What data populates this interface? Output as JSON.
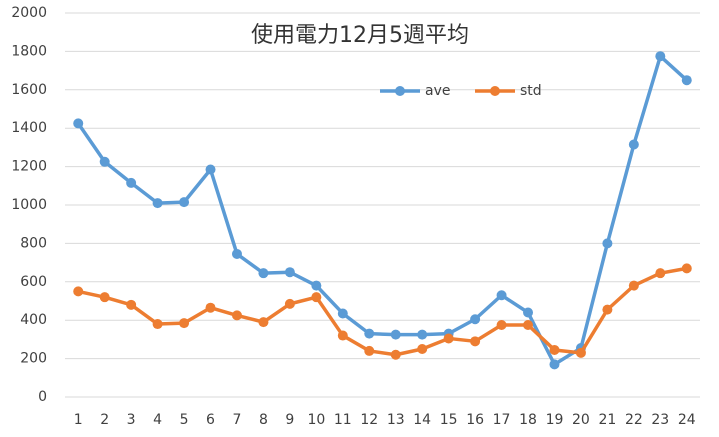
{
  "chart_data": {
    "type": "line",
    "title": "使用電力12月5週平均",
    "categories": [
      "1",
      "2",
      "3",
      "4",
      "5",
      "6",
      "7",
      "8",
      "9",
      "10",
      "11",
      "12",
      "13",
      "14",
      "15",
      "16",
      "17",
      "18",
      "19",
      "20",
      "21",
      "22",
      "23",
      "24"
    ],
    "series": [
      {
        "name": "ave",
        "color": "#5b9bd5",
        "values": [
          1425,
          1225,
          1115,
          1010,
          1015,
          1185,
          745,
          645,
          650,
          580,
          435,
          330,
          325,
          325,
          330,
          405,
          530,
          440,
          170,
          255,
          800,
          1315,
          1775,
          1650
        ]
      },
      {
        "name": "std",
        "color": "#ed7d31",
        "values": [
          550,
          520,
          480,
          380,
          385,
          465,
          425,
          390,
          485,
          520,
          320,
          240,
          220,
          250,
          305,
          290,
          375,
          375,
          245,
          230,
          455,
          580,
          645,
          670
        ]
      }
    ],
    "ylim": [
      0,
      2000
    ],
    "yticks": [
      0,
      200,
      400,
      600,
      800,
      1000,
      1200,
      1400,
      1600,
      1800,
      2000
    ],
    "grid": true,
    "legend": "top"
  }
}
